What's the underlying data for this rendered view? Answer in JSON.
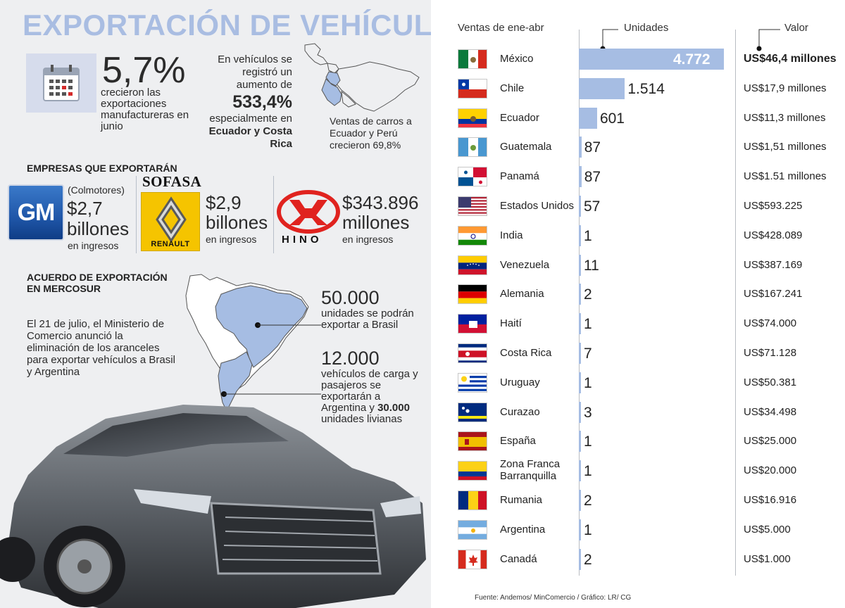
{
  "title": "EXPORTACIÓN DE VEHÍCULOS",
  "stats": {
    "manufacturas_value": "5,7%",
    "manufacturas_desc": "crecieron las exportaciones manufactureras en junio",
    "vehiculos_pre": "En vehículos se registró un aumento de",
    "vehiculos_value": "533,4%",
    "vehiculos_mid": "especialmente en",
    "vehiculos_countries": "Ecuador y Costa Rica",
    "map_caption": "Ventas de carros a Ecuador y Perú crecieron 69,8%"
  },
  "companies": {
    "heading": "EMPRESAS QUE EXPORTARÁN",
    "gm": {
      "logo": "GM",
      "note": "(Colmotores)",
      "value": "$2,7",
      "unit": "billones",
      "desc": "en ingresos"
    },
    "sofasa": {
      "name": "SOFASA",
      "logo": "RENAULT",
      "value": "$2,9",
      "unit": "billones",
      "desc": "en ingresos"
    },
    "hino": {
      "logo": "HINO",
      "value": "$343.896",
      "unit": "millones",
      "desc": "en ingresos"
    }
  },
  "mercosur": {
    "heading_1": "ACUERDO DE EXPORTACIÓN",
    "heading_2": "EN MERCOSUR",
    "text": "El 21 de julio, el Ministerio de Comercio anunció la eliminación de los aranceles para exportar vehículos a Brasil y Argentina",
    "brasil_value": "50.000",
    "brasil_text": "unidades se podrán exportar a Brasil",
    "argentina_value": "12.000",
    "argentina_text": "vehículos de carga y pasajeros se exportarán a Argentina y",
    "argentina_extra_value": "30.000",
    "argentina_extra_text": "unidades livianas"
  },
  "chart_data": {
    "type": "bar",
    "title": "Ventas de ene-abr",
    "columns": [
      "Unidades",
      "Valor"
    ],
    "categories": [
      "México",
      "Chile",
      "Ecuador",
      "Guatemala",
      "Panamá",
      "Estados Unidos",
      "India",
      "Venezuela",
      "Alemania",
      "Haití",
      "Costa Rica",
      "Uruguay",
      "Curazao",
      "España",
      "Zona Franca Barranquilla",
      "Rumania",
      "Argentina",
      "Canadá"
    ],
    "values": [
      4772,
      1514,
      601,
      87,
      87,
      57,
      1,
      11,
      2,
      1,
      7,
      1,
      3,
      1,
      1,
      2,
      1,
      2
    ],
    "value_labels": [
      "4.772",
      "1.514",
      "601",
      "87",
      "87",
      "57",
      "1",
      "11",
      "2",
      "1",
      "7",
      "1",
      "3",
      "1",
      "1",
      "2",
      "1",
      "2"
    ],
    "valor": [
      "US$46,4 millones",
      "US$17,9 millones",
      "US$11,3 millones",
      "US$1,51 millones",
      "US$1.51 millones",
      "US$593.225",
      "US$428.089",
      "US$387.169",
      "US$167.241",
      "US$74.000",
      "US$71.128",
      "US$50.381",
      "US$34.498",
      "US$25.000",
      "US$20.000",
      "US$16.916",
      "US$5.000",
      "US$1.000"
    ],
    "bar_color": "#a6bde3"
  },
  "source": "Fuente: Andemos/ MinComercio / Gráfico: LR/ CG",
  "colors": {
    "title": "#a9bde2",
    "panel": "#eeeff1",
    "bar": "#a6bde3",
    "map": "#a6bde3"
  }
}
